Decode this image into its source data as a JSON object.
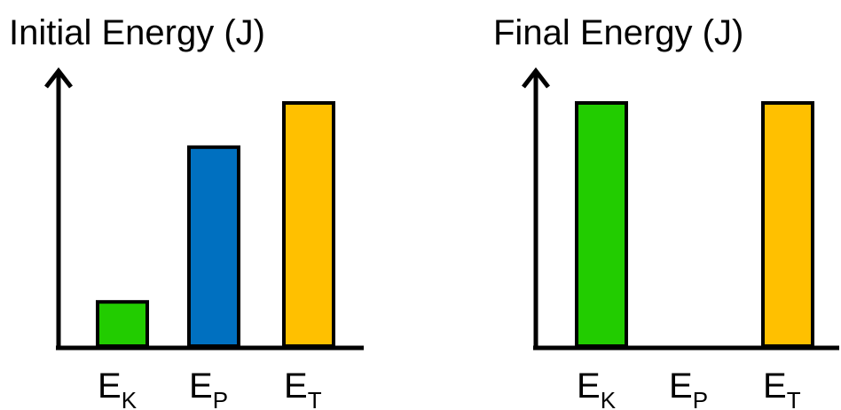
{
  "chart_data": [
    {
      "type": "bar",
      "title": "Initial Energy (J)",
      "categories": [
        {
          "main": "E",
          "sub": "K"
        },
        {
          "main": "E",
          "sub": "P"
        },
        {
          "main": "E",
          "sub": "T"
        }
      ],
      "values": [
        1,
        4.5,
        5.5
      ],
      "colors": [
        "#22cc00",
        "#0070c0",
        "#ffc000"
      ],
      "ylim": [
        0,
        6
      ],
      "grid": false,
      "axis_ticks": "none"
    },
    {
      "type": "bar",
      "title": "Final Energy (J)",
      "categories": [
        {
          "main": "E",
          "sub": "K"
        },
        {
          "main": "E",
          "sub": "P"
        },
        {
          "main": "E",
          "sub": "T"
        }
      ],
      "values": [
        5.5,
        0,
        5.5
      ],
      "colors": [
        "#22cc00",
        "#0070c0",
        "#ffc000"
      ],
      "ylim": [
        0,
        6
      ],
      "grid": false,
      "axis_ticks": "none"
    }
  ]
}
